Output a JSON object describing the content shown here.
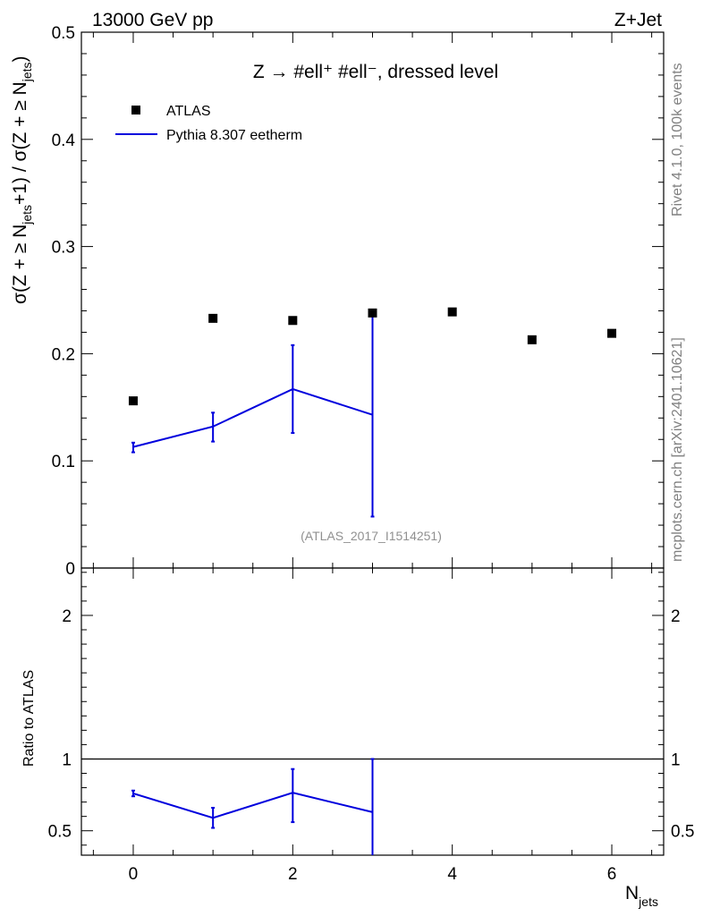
{
  "header": {
    "left": "13000 GeV pp",
    "right": "Z+Jet"
  },
  "side": {
    "rivet": "Rivet 4.1.0,  100k events",
    "mcplots": "mcplots.cern.ch [arXiv:2401.10621]"
  },
  "chart_data": {
    "type": "scatter",
    "title": "Z → #ell⁺ #ell⁻, dressed level",
    "analysis_tag": "(ATLAS_2017_I1514251)",
    "xlabel": "N_jets",
    "xlabel_main": "N",
    "xlabel_sub": "jets",
    "ylabel_parts": [
      "σ(Z + ≥ N",
      "jets",
      "+1) / σ(Z + ≥ N",
      "jets",
      ")"
    ],
    "xlim": [
      -0.65,
      6.65
    ],
    "x_ticks": [
      0,
      2,
      4,
      6
    ],
    "x_tick_labels": [
      "0",
      "2",
      "4",
      "6"
    ],
    "main": {
      "ylim": [
        0,
        0.5
      ],
      "y_ticks": [
        0,
        0.1,
        0.2,
        0.3,
        0.4,
        0.5
      ],
      "y_tick_labels": [
        "0",
        "0.1",
        "0.2",
        "0.3",
        "0.4",
        "0.5"
      ],
      "series": [
        {
          "name": "ATLAS",
          "kind": "markers",
          "color": "#000000",
          "x": [
            0,
            1,
            2,
            3,
            4,
            5,
            6
          ],
          "y": [
            0.156,
            0.233,
            0.231,
            0.238,
            0.239,
            0.213,
            0.219
          ]
        },
        {
          "name": "Pythia 8.307 eetherm",
          "kind": "line",
          "color": "#0000dd",
          "x": [
            0,
            1,
            2,
            3
          ],
          "y": [
            0.113,
            0.132,
            0.167,
            0.143
          ],
          "err_lo": [
            0.108,
            0.118,
            0.126,
            0.048
          ],
          "err_hi": [
            0.117,
            0.145,
            0.208,
            0.237
          ]
        }
      ]
    },
    "ratio": {
      "ylabel": "Ratio to ATLAS",
      "ylim": [
        0.33,
        2.33
      ],
      "y_ticks": [
        0.5,
        1,
        2
      ],
      "y_tick_labels": [
        "0.5",
        "1",
        "2"
      ],
      "reference": 1,
      "series": [
        {
          "name": "Pythia 8.307 eetherm / ATLAS",
          "color": "#0000dd",
          "x": [
            0,
            1,
            2,
            3
          ],
          "y": [
            0.76,
            0.59,
            0.765,
            0.63
          ],
          "err_lo": [
            0.74,
            0.52,
            0.56,
            0.3
          ],
          "err_hi": [
            0.78,
            0.66,
            0.93,
            1.0
          ]
        }
      ]
    }
  }
}
